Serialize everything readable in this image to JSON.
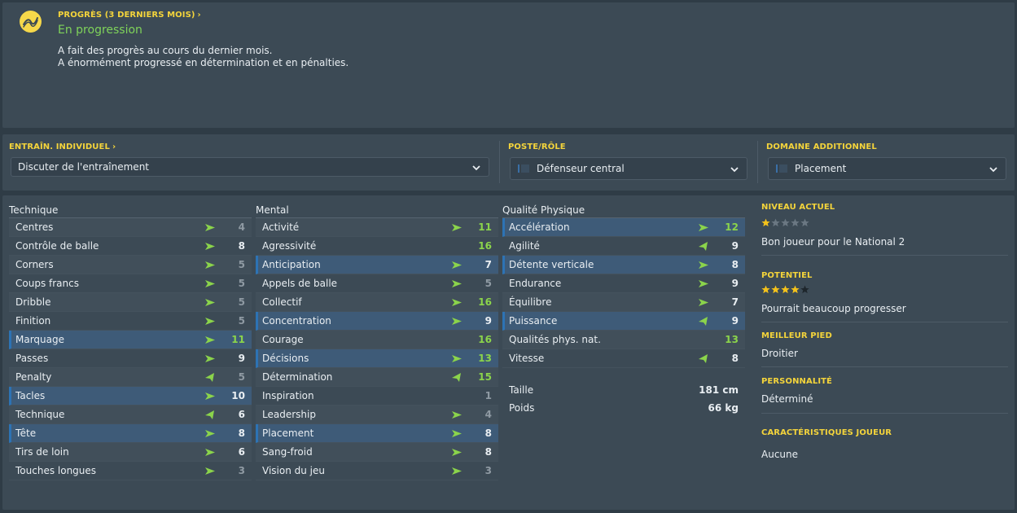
{
  "progress": {
    "label": "PROGRÈS (3 DERNIERS MOIS)",
    "status": "En progression",
    "desc1": "A fait des progrès au cours du dernier mois.",
    "desc2": "A énormément progressé en détermination et en pénalties."
  },
  "training": {
    "label": "ENTRAÎN. INDIVIDUEL",
    "dropdown": "Discuter de l'entraînement"
  },
  "position": {
    "label": "POSTE/RÔLE",
    "dropdown": "Défenseur central"
  },
  "domain": {
    "label": "DOMAINE ADDITIONNEL",
    "dropdown": "Placement"
  },
  "technique": {
    "title": "Technique",
    "rows": [
      {
        "name": "Centres",
        "value": "4",
        "arrow": "up"
      },
      {
        "name": "Contrôle de balle",
        "value": "8",
        "arrow": "up"
      },
      {
        "name": "Corners",
        "value": "5",
        "arrow": "up"
      },
      {
        "name": "Coups francs",
        "value": "5",
        "arrow": "up"
      },
      {
        "name": "Dribble",
        "value": "5",
        "arrow": "up"
      },
      {
        "name": "Finition",
        "value": "5",
        "arrow": "up"
      },
      {
        "name": "Marquage",
        "value": "11",
        "arrow": "up"
      },
      {
        "name": "Passes",
        "value": "9",
        "arrow": "up"
      },
      {
        "name": "Penalty",
        "value": "5",
        "arrow": "left"
      },
      {
        "name": "Tacles",
        "value": "10",
        "arrow": "up"
      },
      {
        "name": "Technique",
        "value": "6",
        "arrow": "left"
      },
      {
        "name": "Tête",
        "value": "8",
        "arrow": "up"
      },
      {
        "name": "Tirs de loin",
        "value": "6",
        "arrow": "up"
      },
      {
        "name": "Touches longues",
        "value": "3",
        "arrow": "up"
      }
    ]
  },
  "mental": {
    "title": "Mental",
    "rows": [
      {
        "name": "Activité",
        "value": "11",
        "arrow": "up"
      },
      {
        "name": "Agressivité",
        "value": "16",
        "arrow": ""
      },
      {
        "name": "Anticipation",
        "value": "7",
        "arrow": "up"
      },
      {
        "name": "Appels de balle",
        "value": "5",
        "arrow": "up"
      },
      {
        "name": "Collectif",
        "value": "16",
        "arrow": "up"
      },
      {
        "name": "Concentration",
        "value": "9",
        "arrow": "up"
      },
      {
        "name": "Courage",
        "value": "16",
        "arrow": ""
      },
      {
        "name": "Décisions",
        "value": "13",
        "arrow": "up"
      },
      {
        "name": "Détermination",
        "value": "15",
        "arrow": "left"
      },
      {
        "name": "Inspiration",
        "value": "1",
        "arrow": ""
      },
      {
        "name": "Leadership",
        "value": "4",
        "arrow": "up"
      },
      {
        "name": "Placement",
        "value": "8",
        "arrow": "up"
      },
      {
        "name": "Sang-froid",
        "value": "8",
        "arrow": "up"
      },
      {
        "name": "Vision du jeu",
        "value": "3",
        "arrow": "up"
      }
    ]
  },
  "physical": {
    "title": "Qualité Physique",
    "rows": [
      {
        "name": "Accélération",
        "value": "12",
        "arrow": "up"
      },
      {
        "name": "Agilité",
        "value": "9",
        "arrow": "left"
      },
      {
        "name": "Détente verticale",
        "value": "8",
        "arrow": "up"
      },
      {
        "name": "Endurance",
        "value": "9",
        "arrow": "up"
      },
      {
        "name": "Équilibre",
        "value": "7",
        "arrow": "up"
      },
      {
        "name": "Puissance",
        "value": "9",
        "arrow": "left"
      },
      {
        "name": "Qualités phys. nat.",
        "value": "13",
        "arrow": ""
      },
      {
        "name": "Vitesse",
        "value": "8",
        "arrow": "left"
      }
    ],
    "height_label": "Taille",
    "height_value": "181 cm",
    "weight_label": "Poids",
    "weight_value": "66 kg"
  },
  "info": {
    "current_label": "NIVEAU ACTUEL",
    "current_stars": 1,
    "current_text": "Bon joueur pour le National 2",
    "potential_label": "POTENTIEL",
    "potential_stars": 4,
    "potential_text": "Pourrait beaucoup progresser",
    "foot_label": "MEILLEUR PIED",
    "foot_text": "Droitier",
    "personality_label": "PERSONNALITÉ",
    "personality_text": "Déterminé",
    "traits_label": "CARACTÉRISTIQUES JOUEUR",
    "traits_text": "Aucune"
  },
  "colors": {
    "accent_yellow": "#f4d43b",
    "progress_green": "#7fd35a",
    "value_green": "#8bd44b",
    "highlight_blue": "#3e5b78"
  }
}
